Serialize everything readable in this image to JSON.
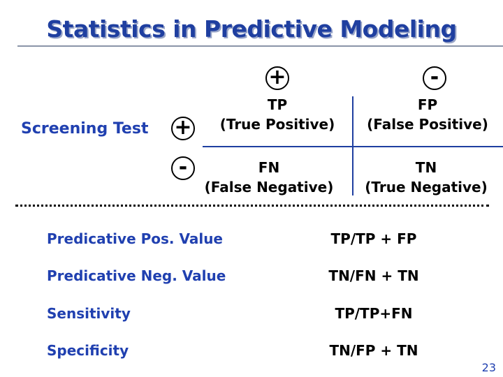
{
  "title": "Statistics in Predictive Modeling",
  "matrix": {
    "col_headers": [
      "+",
      "-"
    ],
    "row_label": "Screening Test",
    "row_headers": [
      "+",
      "-"
    ],
    "cells": [
      [
        {
          "abbr": "TP",
          "full": "(True Positive)"
        },
        {
          "abbr": "FP",
          "full": "(False Positive)"
        }
      ],
      [
        {
          "abbr": "FN",
          "full": "(False Negative)"
        },
        {
          "abbr": "TN",
          "full": "(True Negative)"
        }
      ]
    ]
  },
  "metrics": [
    {
      "label": "Predicative Pos. Value",
      "formula": "TP/TP + FP"
    },
    {
      "label": "Predicative Neg. Value",
      "formula": "TN/FN + TN"
    },
    {
      "label": "Sensitivity",
      "formula": "TP/TP+FN"
    },
    {
      "label": "Specificity",
      "formula": "TN/FP + TN"
    }
  ],
  "page_number": "23"
}
